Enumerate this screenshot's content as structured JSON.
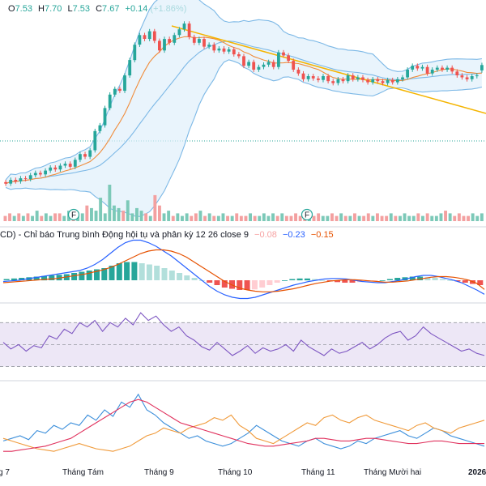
{
  "header": {
    "ohlc": [
      {
        "key": "O",
        "value": "7.53"
      },
      {
        "key": "H",
        "value": "7.70"
      },
      {
        "key": "L",
        "value": "7.53"
      },
      {
        "key": "C",
        "value": "7.67"
      }
    ],
    "change": "+0.14 (+1.86%)"
  },
  "macd_legend": {
    "title": "CD) - Chỉ báo Trung bình Động hội tụ và phân kỳ 12 26 close 9",
    "values": [
      {
        "text": "−0.08",
        "color": "#f7a3a3"
      },
      {
        "text": "−0.23",
        "color": "#2962ff"
      },
      {
        "text": "−0.15",
        "color": "#e65100"
      }
    ]
  },
  "colors": {
    "up": "#26a69a",
    "down": "#ef5350",
    "bb": "#7cb8e6",
    "bb_fill": "#dff0fb",
    "ma": "#f08c3a",
    "trend": "#f4b400",
    "vol_up": "#7cc9b8",
    "vol_down": "#f3a0a0",
    "macd": "#2962ff",
    "signal": "#e65100",
    "rsi": "#7e57c2",
    "rsi_band": "#ede7f6",
    "di_plus": "#3c8fdb",
    "di_minus": "#f09a3a",
    "adx": "#e0315d"
  },
  "chart_data": {
    "type": "candlestick",
    "x_ticks": [
      "g 7",
      "Tháng Tám",
      "Tháng 9",
      "Tháng 10",
      "Tháng 11",
      "Tháng Mười hai",
      "2026"
    ],
    "markers": [
      "F",
      "F"
    ],
    "candles": [
      {
        "o": 4.62,
        "c": 4.58
      },
      {
        "o": 4.58,
        "c": 4.68
      },
      {
        "o": 4.68,
        "c": 4.64
      },
      {
        "o": 4.64,
        "c": 4.72
      },
      {
        "o": 4.72,
        "c": 4.7
      },
      {
        "o": 4.7,
        "c": 4.8
      },
      {
        "o": 4.8,
        "c": 4.86
      },
      {
        "o": 4.86,
        "c": 4.82
      },
      {
        "o": 4.82,
        "c": 4.92
      },
      {
        "o": 4.92,
        "c": 5.0
      },
      {
        "o": 5.0,
        "c": 4.95
      },
      {
        "o": 4.95,
        "c": 5.05
      },
      {
        "o": 5.05,
        "c": 5.1
      },
      {
        "o": 5.1,
        "c": 5.02
      },
      {
        "o": 5.02,
        "c": 5.2
      },
      {
        "o": 5.2,
        "c": 5.35
      },
      {
        "o": 5.35,
        "c": 5.28
      },
      {
        "o": 5.28,
        "c": 5.45
      },
      {
        "o": 5.45,
        "c": 5.95
      },
      {
        "o": 5.95,
        "c": 6.1
      },
      {
        "o": 6.1,
        "c": 6.55
      },
      {
        "o": 6.55,
        "c": 6.9
      },
      {
        "o": 6.9,
        "c": 7.05
      },
      {
        "o": 7.05,
        "c": 7.0
      },
      {
        "o": 7.0,
        "c": 7.4
      },
      {
        "o": 7.4,
        "c": 7.8
      },
      {
        "o": 7.8,
        "c": 8.2
      },
      {
        "o": 8.2,
        "c": 8.45
      },
      {
        "o": 8.45,
        "c": 8.35
      },
      {
        "o": 8.35,
        "c": 8.55
      },
      {
        "o": 8.55,
        "c": 8.3
      },
      {
        "o": 8.3,
        "c": 8.05
      },
      {
        "o": 8.05,
        "c": 8.35
      },
      {
        "o": 8.35,
        "c": 8.25
      },
      {
        "o": 8.25,
        "c": 8.45
      },
      {
        "o": 8.45,
        "c": 8.6
      },
      {
        "o": 8.6,
        "c": 8.75
      },
      {
        "o": 8.75,
        "c": 8.4
      },
      {
        "o": 8.4,
        "c": 8.25
      },
      {
        "o": 8.25,
        "c": 8.35
      },
      {
        "o": 8.35,
        "c": 8.15
      },
      {
        "o": 8.15,
        "c": 8.2
      },
      {
        "o": 8.2,
        "c": 8.05
      },
      {
        "o": 8.05,
        "c": 8.1
      },
      {
        "o": 8.1,
        "c": 8.02
      },
      {
        "o": 8.02,
        "c": 8.08
      },
      {
        "o": 8.08,
        "c": 7.95
      },
      {
        "o": 7.95,
        "c": 7.9
      },
      {
        "o": 7.9,
        "c": 7.65
      },
      {
        "o": 7.65,
        "c": 7.75
      },
      {
        "o": 7.75,
        "c": 7.55
      },
      {
        "o": 7.55,
        "c": 7.62
      },
      {
        "o": 7.62,
        "c": 7.68
      },
      {
        "o": 7.68,
        "c": 7.75
      },
      {
        "o": 7.75,
        "c": 7.62
      },
      {
        "o": 7.62,
        "c": 8.0
      },
      {
        "o": 8.0,
        "c": 7.92
      },
      {
        "o": 7.92,
        "c": 7.78
      },
      {
        "o": 7.78,
        "c": 7.55
      },
      {
        "o": 7.55,
        "c": 7.45
      },
      {
        "o": 7.45,
        "c": 7.3
      },
      {
        "o": 7.3,
        "c": 7.38
      },
      {
        "o": 7.38,
        "c": 7.32
      },
      {
        "o": 7.32,
        "c": 7.28
      },
      {
        "o": 7.28,
        "c": 7.38
      },
      {
        "o": 7.38,
        "c": 7.25
      },
      {
        "o": 7.25,
        "c": 7.2
      },
      {
        "o": 7.2,
        "c": 7.3
      },
      {
        "o": 7.3,
        "c": 7.25
      },
      {
        "o": 7.25,
        "c": 7.4
      },
      {
        "o": 7.4,
        "c": 7.3
      },
      {
        "o": 7.3,
        "c": 7.35
      },
      {
        "o": 7.35,
        "c": 7.28
      },
      {
        "o": 7.28,
        "c": 7.22
      },
      {
        "o": 7.22,
        "c": 7.3
      },
      {
        "o": 7.3,
        "c": 7.25
      },
      {
        "o": 7.25,
        "c": 7.2
      },
      {
        "o": 7.2,
        "c": 7.28
      },
      {
        "o": 7.28,
        "c": 7.22
      },
      {
        "o": 7.22,
        "c": 7.3
      },
      {
        "o": 7.3,
        "c": 7.35
      },
      {
        "o": 7.35,
        "c": 7.55
      },
      {
        "o": 7.55,
        "c": 7.65
      },
      {
        "o": 7.65,
        "c": 7.58
      },
      {
        "o": 7.58,
        "c": 7.62
      },
      {
        "o": 7.62,
        "c": 7.45
      },
      {
        "o": 7.45,
        "c": 7.55
      },
      {
        "o": 7.55,
        "c": 7.6
      },
      {
        "o": 7.6,
        "c": 7.55
      },
      {
        "o": 7.55,
        "c": 7.6
      },
      {
        "o": 7.6,
        "c": 7.5
      },
      {
        "o": 7.5,
        "c": 7.4
      },
      {
        "o": 7.4,
        "c": 7.35
      },
      {
        "o": 7.35,
        "c": 7.3
      },
      {
        "o": 7.3,
        "c": 7.38
      },
      {
        "o": 7.38,
        "c": 7.4
      },
      {
        "o": 7.53,
        "c": 7.67
      }
    ],
    "volume": [
      2,
      3,
      2,
      3,
      2,
      3,
      2,
      4,
      2,
      3,
      2,
      3,
      3,
      2,
      4,
      3,
      2,
      3,
      6,
      5,
      4,
      9,
      3,
      14,
      6,
      5,
      4,
      8,
      3,
      5,
      4,
      3,
      2,
      10,
      6,
      3,
      4,
      2,
      3,
      2,
      3,
      2,
      3,
      4,
      2,
      3,
      2,
      2,
      3,
      2,
      2,
      3,
      2,
      2,
      3,
      2,
      2,
      3,
      2,
      3,
      2,
      3,
      2,
      2,
      3,
      2,
      3,
      2,
      2,
      3,
      2,
      2,
      3,
      2,
      3,
      2,
      2,
      3,
      2,
      2,
      3,
      2,
      3,
      2,
      2,
      3,
      2,
      2,
      3,
      2,
      2,
      3,
      2,
      3,
      2,
      2,
      3,
      4,
      3,
      2,
      3,
      2,
      2,
      3,
      2,
      3
    ],
    "macd_hist": [
      0.02,
      0.03,
      0.04,
      0.05,
      0.06,
      0.07,
      0.08,
      0.09,
      0.1,
      0.12,
      0.14,
      0.16,
      0.18,
      0.2,
      0.24,
      0.28,
      0.3,
      0.3,
      0.28,
      0.26,
      0.24,
      0.2,
      0.16,
      0.12,
      0.08,
      0.04,
      0.0,
      -0.04,
      -0.08,
      -0.12,
      -0.14,
      -0.16,
      -0.16,
      -0.15,
      -0.12,
      -0.08,
      -0.04,
      0.0,
      0.02,
      0.03,
      0.03,
      0.02,
      0.0,
      -0.02,
      -0.03,
      -0.04,
      -0.04,
      -0.03,
      -0.02,
      -0.01,
      0.0,
      0.02,
      0.04,
      0.05,
      0.06,
      0.06,
      0.05,
      0.04,
      0.02,
      0.0,
      -0.02,
      -0.04,
      -0.06,
      -0.08
    ],
    "macd_line": [
      -0.02,
      -0.01,
      0.0,
      0.02,
      0.04,
      0.06,
      0.08,
      0.1,
      0.12,
      0.14,
      0.16,
      0.2,
      0.26,
      0.34,
      0.44,
      0.54,
      0.62,
      0.66,
      0.66,
      0.62,
      0.56,
      0.48,
      0.4,
      0.3,
      0.2,
      0.1,
      0.0,
      -0.1,
      -0.18,
      -0.24,
      -0.28,
      -0.3,
      -0.3,
      -0.28,
      -0.24,
      -0.2,
      -0.16,
      -0.12,
      -0.08,
      -0.05,
      -0.02,
      0.0,
      0.02,
      0.03,
      0.03,
      0.02,
      0.0,
      -0.02,
      -0.03,
      -0.04,
      -0.04,
      -0.02,
      0.0,
      0.03,
      0.06,
      0.08,
      0.08,
      0.06,
      0.03,
      0.0,
      -0.04,
      -0.1,
      -0.16,
      -0.23
    ],
    "signal_line": [
      -0.04,
      -0.03,
      -0.02,
      -0.01,
      0.0,
      0.01,
      0.02,
      0.03,
      0.05,
      0.07,
      0.09,
      0.11,
      0.14,
      0.17,
      0.21,
      0.26,
      0.32,
      0.38,
      0.44,
      0.48,
      0.5,
      0.5,
      0.48,
      0.44,
      0.38,
      0.3,
      0.22,
      0.14,
      0.06,
      -0.02,
      -0.08,
      -0.13,
      -0.16,
      -0.18,
      -0.19,
      -0.19,
      -0.18,
      -0.16,
      -0.14,
      -0.11,
      -0.08,
      -0.05,
      -0.03,
      -0.01,
      0.0,
      0.01,
      0.01,
      0.0,
      -0.01,
      -0.02,
      -0.03,
      -0.03,
      -0.02,
      -0.01,
      0.01,
      0.03,
      0.05,
      0.06,
      0.06,
      0.05,
      0.03,
      0.0,
      -0.05,
      -0.15
    ],
    "rsi": [
      52,
      46,
      50,
      44,
      49,
      47,
      58,
      55,
      64,
      60,
      70,
      66,
      72,
      62,
      70,
      66,
      74,
      68,
      79,
      72,
      76,
      68,
      62,
      66,
      58,
      54,
      48,
      45,
      52,
      46,
      40,
      44,
      49,
      42,
      47,
      44,
      46,
      50,
      44,
      54,
      48,
      44,
      40,
      46,
      42,
      44,
      48,
      52,
      46,
      50,
      56,
      60,
      62,
      54,
      58,
      66,
      60,
      56,
      52,
      48,
      44,
      46,
      42,
      40
    ],
    "rsi_band": [
      30,
      70
    ],
    "rsi_range": [
      20,
      85
    ],
    "di_plus": [
      16,
      18,
      20,
      17,
      24,
      22,
      28,
      25,
      30,
      28,
      36,
      32,
      40,
      35,
      46,
      42,
      52,
      40,
      36,
      30,
      26,
      22,
      18,
      20,
      16,
      14,
      12,
      14,
      18,
      22,
      28,
      24,
      20,
      16,
      14,
      12,
      16,
      18,
      14,
      12,
      10,
      12,
      16,
      14,
      18,
      20,
      22,
      24,
      20,
      18,
      22,
      26,
      24,
      20,
      18,
      16,
      14,
      12
    ],
    "di_minus": [
      18,
      16,
      14,
      12,
      10,
      9,
      8,
      10,
      12,
      14,
      12,
      10,
      9,
      8,
      10,
      12,
      16,
      20,
      22,
      26,
      24,
      22,
      26,
      28,
      30,
      34,
      32,
      36,
      28,
      24,
      18,
      16,
      14,
      18,
      22,
      26,
      30,
      28,
      34,
      36,
      32,
      30,
      34,
      36,
      32,
      30,
      28,
      26,
      24,
      28,
      30,
      26,
      24,
      22,
      26,
      28,
      30,
      32
    ],
    "adx": [
      8,
      8,
      9,
      10,
      11,
      12,
      14,
      16,
      18,
      22,
      26,
      30,
      34,
      38,
      42,
      46,
      48,
      46,
      42,
      38,
      34,
      30,
      28,
      26,
      24,
      22,
      20,
      18,
      16,
      14,
      13,
      12,
      12,
      13,
      14,
      15,
      16,
      18,
      18,
      17,
      16,
      16,
      17,
      18,
      18,
      17,
      16,
      15,
      14,
      14,
      15,
      16,
      16,
      15,
      14,
      14,
      14,
      14
    ],
    "dmi_range": [
      0,
      60
    ]
  }
}
